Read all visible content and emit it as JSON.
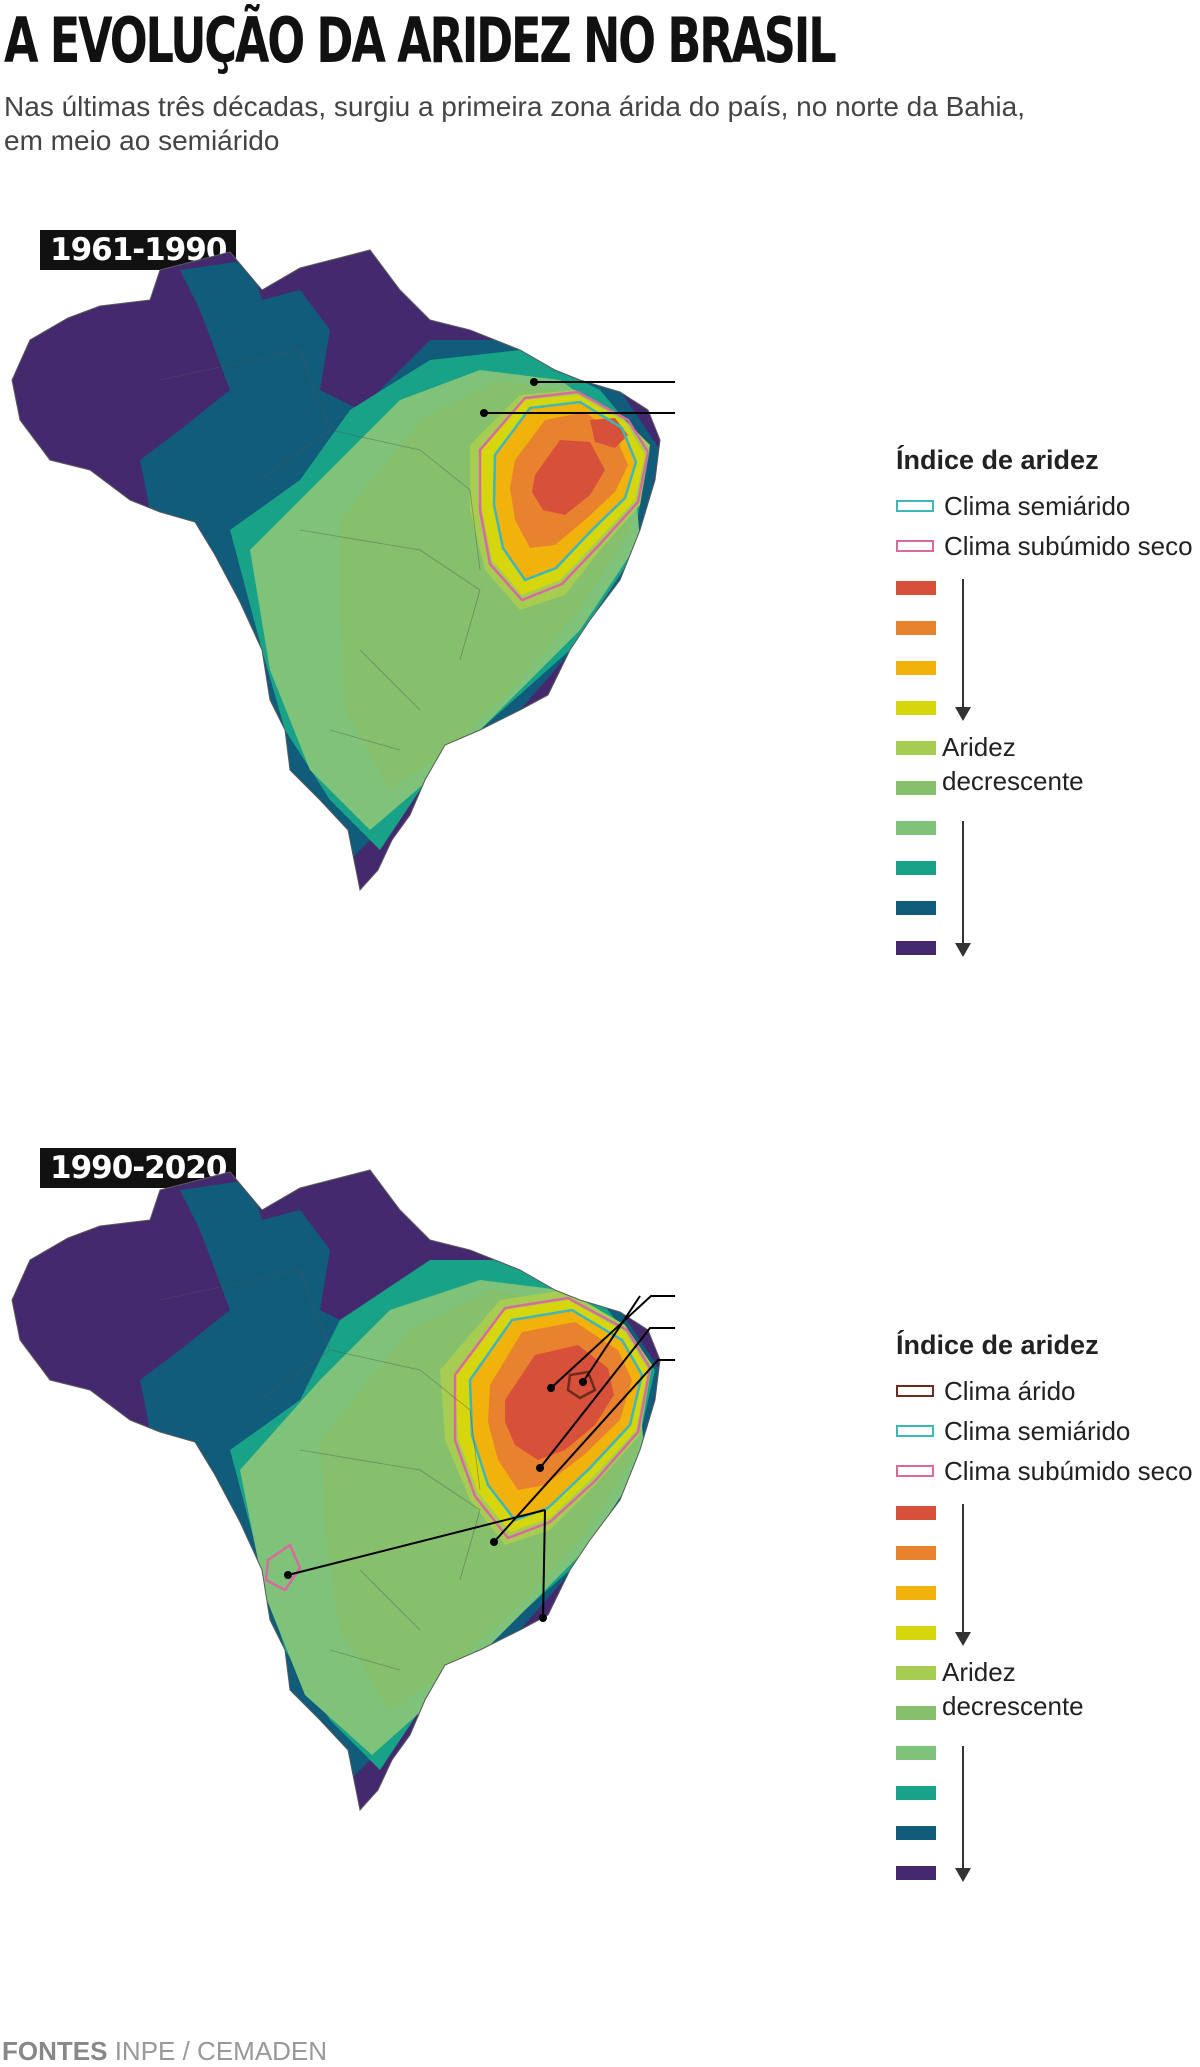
{
  "header": {
    "title": "A EVOLUÇÃO DA ARIDEZ NO BRASIL",
    "subtitle": "Nas últimas três décadas, surgiu a primeira zona árida do país, no norte da Bahia, em meio ao semiárido"
  },
  "maps": [
    {
      "period": "1961-1990",
      "legend": {
        "title": "Índice de aridez",
        "outlines": [
          {
            "label": "Clima semiárido",
            "color": "#3fb6b8"
          },
          {
            "label": "Clima subúmido seco",
            "color": "#d86aa0"
          }
        ],
        "decreasing_label_1": "Aridez",
        "decreasing_label_2": "decrescente"
      }
    },
    {
      "period": "1990-2020",
      "legend": {
        "title": "Índice de aridez",
        "outlines": [
          {
            "label": "Clima árido",
            "color": "#6e2a1a"
          },
          {
            "label": "Clima semiárido",
            "color": "#3fb6b8"
          },
          {
            "label": "Clima subúmido seco",
            "color": "#d86aa0"
          }
        ],
        "decreasing_label_1": "Aridez",
        "decreasing_label_2": "decrescente"
      }
    }
  ],
  "scale_colors": [
    "#d6503a",
    "#e8822e",
    "#f2b20c",
    "#d6d60e",
    "#a6cc52",
    "#86c06c",
    "#7fc37a",
    "#18a287",
    "#105c7a",
    "#44296e"
  ],
  "sources": {
    "label": "FONTES",
    "text": "INPE / CEMADEN"
  }
}
